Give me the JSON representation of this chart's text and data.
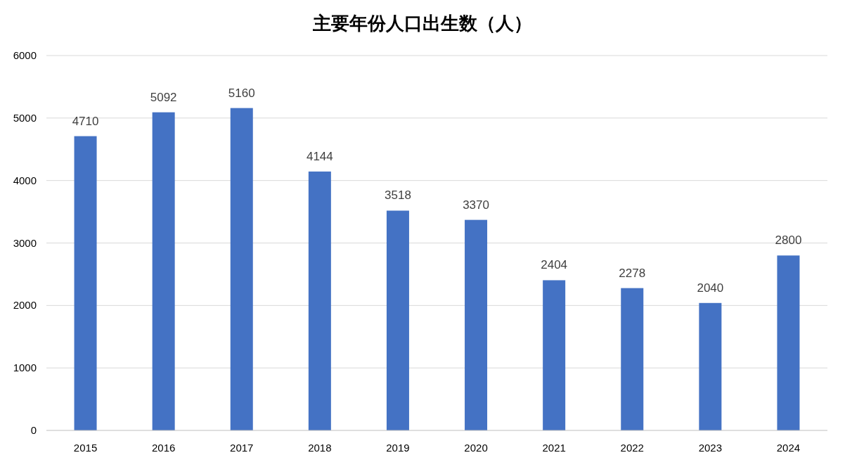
{
  "chart_data": {
    "type": "bar",
    "title": "主要年份人口出生数（人）",
    "categories": [
      "2015",
      "2016",
      "2017",
      "2018",
      "2019",
      "2020",
      "2021",
      "2022",
      "2023",
      "2024"
    ],
    "values": [
      4710,
      5092,
      5160,
      4144,
      3518,
      3370,
      2404,
      2278,
      2040,
      2800
    ],
    "color": "#4472c4",
    "data_labels": true,
    "grid": "y",
    "ylim": [
      0,
      6000
    ],
    "yticks": [
      0,
      1000,
      2000,
      3000,
      4000,
      5000,
      6000
    ]
  }
}
